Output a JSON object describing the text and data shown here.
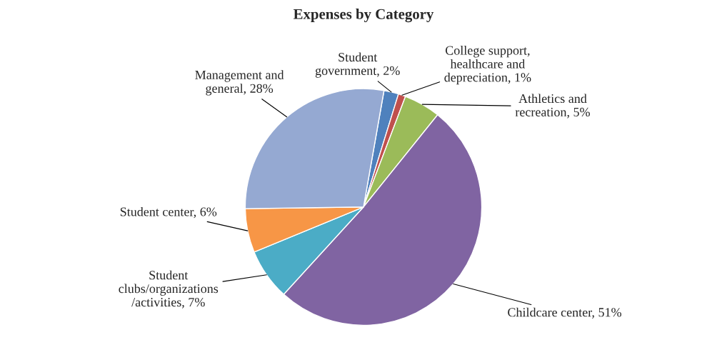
{
  "chart_data": {
    "type": "pie",
    "title": "Expenses by Category",
    "categories": [
      "Student\ngovernment",
      "College support,\nhealthcare and\ndepreciation",
      "Athletics and\nrecreation",
      "Childcare center",
      "Student\nclubs/organizations\n/activities",
      "Student center",
      "Management and\ngeneral"
    ],
    "values": [
      2,
      1,
      5,
      51,
      7,
      6,
      28
    ],
    "value_labels": [
      "2%",
      "1%",
      "5%",
      "51%",
      "7%",
      "6%",
      "28%"
    ],
    "colors": [
      "#4f81bd",
      "#c0504d",
      "#9bbb59",
      "#8064a2",
      "#4bacc6",
      "#f79646",
      "#95a9d2"
    ],
    "legend": false
  }
}
